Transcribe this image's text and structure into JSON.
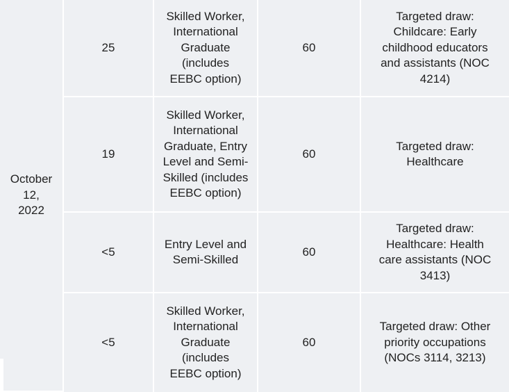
{
  "date": "October\n12,\n2022",
  "rows": [
    {
      "count": "25",
      "streams": "Skilled Worker,\nInternational\nGraduate (includes\nEEBC option)",
      "score": "60",
      "draw": "Targeted draw:\nChildcare: Early\nchildhood educators\nand assistants (NOC\n4214)"
    },
    {
      "count": "19",
      "streams": "Skilled Worker,\nInternational\nGraduate, Entry\nLevel and Semi-\nSkilled (includes\nEEBC option)",
      "score": "60",
      "draw": "Targeted draw:\nHealthcare"
    },
    {
      "count": "<5",
      "streams": "Entry Level and\nSemi-Skilled",
      "score": "60",
      "draw": "Targeted draw:\nHealthcare: Health\ncare assistants (NOC\n3413)"
    },
    {
      "count": "<5",
      "streams": "Skilled Worker,\nInternational\nGraduate\n(includes\nEEBC option)",
      "score": "60",
      "draw": "Targeted draw: Other\npriority occupations\n(NOCs 3114, 3213)"
    }
  ]
}
